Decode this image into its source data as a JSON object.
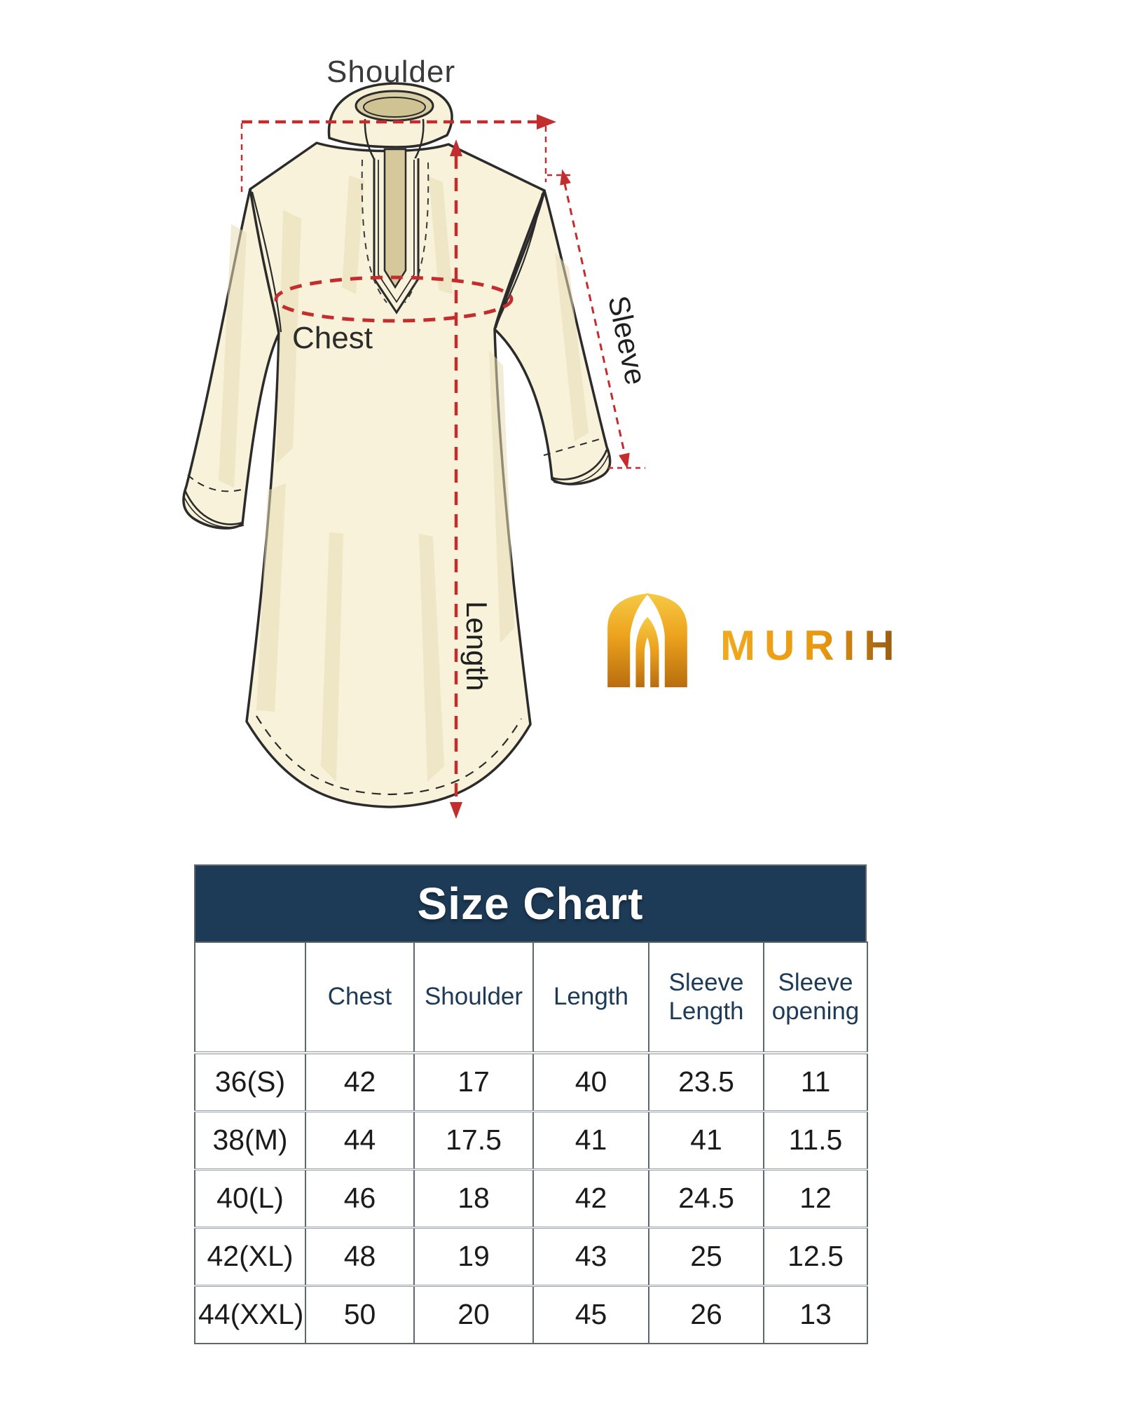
{
  "brand": {
    "name": "MURIH"
  },
  "colors": {
    "navy_header": "#1d3a56",
    "annotation_red": "#c32d2d",
    "garment_cream": "#f7f2d9",
    "garment_shade": "#eae0bd",
    "collar_inner": "#d6cba1",
    "gold_light": "#f6ca45",
    "gold_mid": "#eda31d",
    "gold_dark": "#b86d0e"
  },
  "diagram": {
    "labels": {
      "shoulder": "Shoulder",
      "chest": "Chest",
      "sleeve": "Sleeve",
      "length": "Length"
    }
  },
  "size_chart": {
    "title": "Size Chart",
    "columns": [
      "",
      "Chest",
      "Shoulder",
      "Length",
      "Sleeve Length",
      "Sleeve opening"
    ],
    "rows": [
      {
        "size": "36(S)",
        "values": [
          "42",
          "17",
          "40",
          "23.5",
          "11"
        ]
      },
      {
        "size": "38(M)",
        "values": [
          "44",
          "17.5",
          "41",
          "41",
          "11.5"
        ]
      },
      {
        "size": "40(L)",
        "values": [
          "46",
          "18",
          "42",
          "24.5",
          "12"
        ]
      },
      {
        "size": "42(XL)",
        "values": [
          "48",
          "19",
          "43",
          "25",
          "12.5"
        ]
      },
      {
        "size": "44(XXL)",
        "values": [
          "50",
          "20",
          "45",
          "26",
          "13"
        ]
      }
    ]
  }
}
